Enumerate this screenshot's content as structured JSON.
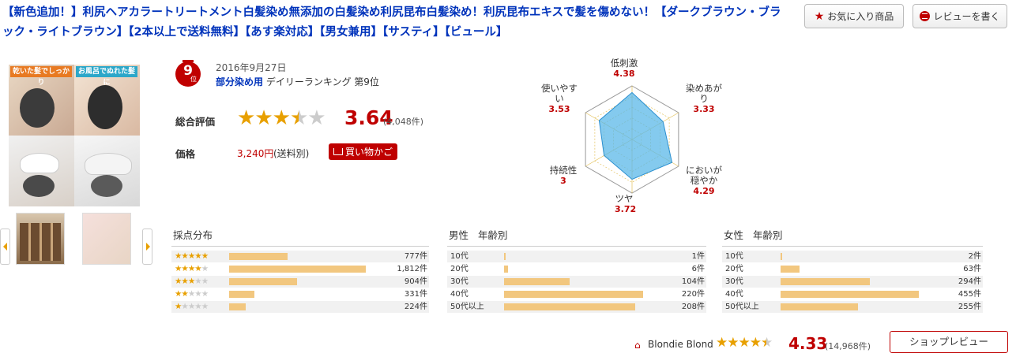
{
  "title": "【新色追加！】利尻ヘアカラートリートメント白髪染め無添加の白髪染め利尻昆布白髪染め！利尻昆布エキスで髪を傷めない！【ダークブラウン・ブラック・ライトブラウン】【2本以上で送料無料】【あす楽対応】【男女兼用】【サスティ】【ビュール】",
  "buttons": {
    "favorite": "お気に入り商品",
    "write_review": "レビューを書く"
  },
  "images": {
    "panel1_head": "乾いた髪でしっかり",
    "panel2_head": "お風呂でぬれた髪に"
  },
  "rank": {
    "number": "9",
    "unit": "位",
    "date": "2016年9月27日",
    "category": "部分染め用",
    "text": "デイリーランキング 第9位"
  },
  "rating": {
    "label": "総合評価",
    "score": "3.64",
    "count": "(4,048件)",
    "stars_fraction": 0.728
  },
  "price": {
    "label": "価格",
    "value": "3,240円",
    "note": "(送料別)",
    "cart_label": "買い物かご"
  },
  "radar": [
    {
      "label": "低刺激",
      "value": "4.38"
    },
    {
      "label": "染めあがり",
      "value": "3.33"
    },
    {
      "label": "においが穏やか",
      "value": "4.29"
    },
    {
      "label": "ツヤ",
      "value": "3.72"
    },
    {
      "label": "持続性",
      "value": "3"
    },
    {
      "label": "使いやすい",
      "value": "3.53"
    }
  ],
  "radar_labels": {
    "a0": "低刺激",
    "a1a": "染めあが",
    "a1b": "り",
    "a2a": "においが",
    "a2b": "穏やか",
    "a3": "ツヤ",
    "a4": "持続性",
    "a5a": "使いやす",
    "a5b": "い"
  },
  "score_dist": {
    "title": "採点分布",
    "rows": [
      {
        "stars": 5,
        "count": "777件",
        "value": 777
      },
      {
        "stars": 4,
        "count": "1,812件",
        "value": 1812
      },
      {
        "stars": 3,
        "count": "904件",
        "value": 904
      },
      {
        "stars": 2,
        "count": "331件",
        "value": 331
      },
      {
        "stars": 1,
        "count": "224件",
        "value": 224
      }
    ]
  },
  "male_dist": {
    "title": "男性",
    "subtitle": "年齢別",
    "rows": [
      {
        "age": "10代",
        "count": "1件",
        "value": 1
      },
      {
        "age": "20代",
        "count": "6件",
        "value": 6
      },
      {
        "age": "30代",
        "count": "104件",
        "value": 104
      },
      {
        "age": "40代",
        "count": "220件",
        "value": 220
      },
      {
        "age": "50代以上",
        "count": "208件",
        "value": 208
      }
    ]
  },
  "female_dist": {
    "title": "女性",
    "subtitle": "年齢別",
    "rows": [
      {
        "age": "10代",
        "count": "2件",
        "value": 2
      },
      {
        "age": "20代",
        "count": "63件",
        "value": 63
      },
      {
        "age": "30代",
        "count": "294件",
        "value": 294
      },
      {
        "age": "40代",
        "count": "455件",
        "value": 455
      },
      {
        "age": "50代以上",
        "count": "255件",
        "value": 255
      }
    ]
  },
  "shop": {
    "name": "Blondie Blond",
    "score": "4.33",
    "count": "(14,968件)",
    "review_button": "ショップレビュー",
    "stars_fraction": 0.866
  },
  "colors": {
    "accent": "#bf0000",
    "star": "#e8a000",
    "bar": "#f2c77f",
    "radar_fill": "#5bb8e8",
    "title_link": "#0033bb"
  }
}
